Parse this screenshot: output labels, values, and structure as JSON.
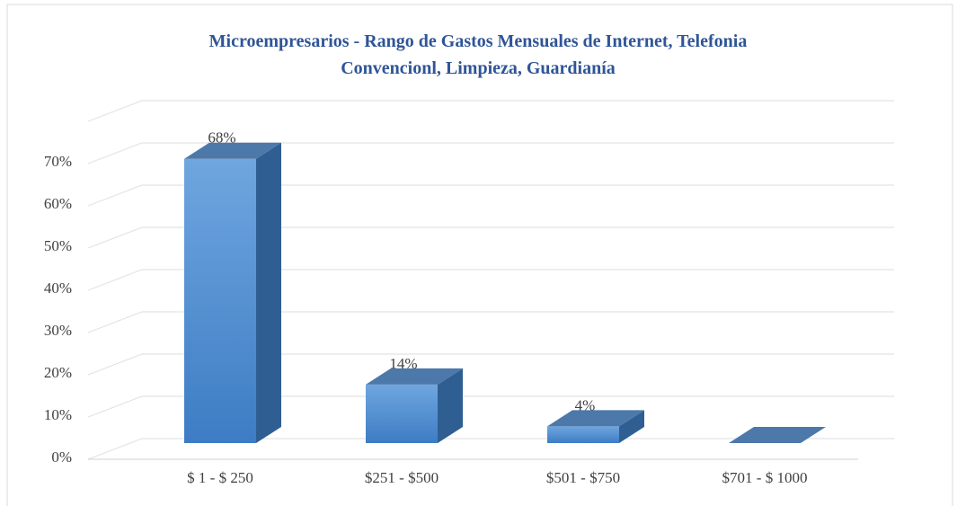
{
  "chart_data": {
    "type": "bar3d",
    "title": "Microempresarios - Rango de Gastos Mensuales de Internet, Telefonia Convencionl, Limpieza, Guardianía",
    "categories": [
      "$ 1 - $ 250",
      "$251 - $500",
      "$501 - $750",
      "$701 - $ 1000"
    ],
    "values": [
      68,
      14,
      4,
      0
    ],
    "value_labels": [
      "68%",
      "14%",
      "4%",
      null
    ],
    "color": "#5b9bd5",
    "ylim": [
      0,
      80
    ],
    "yticks": [
      {
        "value": 0,
        "label": "0%"
      },
      {
        "value": 10,
        "label": "10%"
      },
      {
        "value": 20,
        "label": "20%"
      },
      {
        "value": 30,
        "label": "30%"
      },
      {
        "value": 40,
        "label": "40%"
      },
      {
        "value": 50,
        "label": "50%"
      },
      {
        "value": 60,
        "label": "60%"
      },
      {
        "value": 70,
        "label": "70%"
      }
    ],
    "grid": true
  }
}
